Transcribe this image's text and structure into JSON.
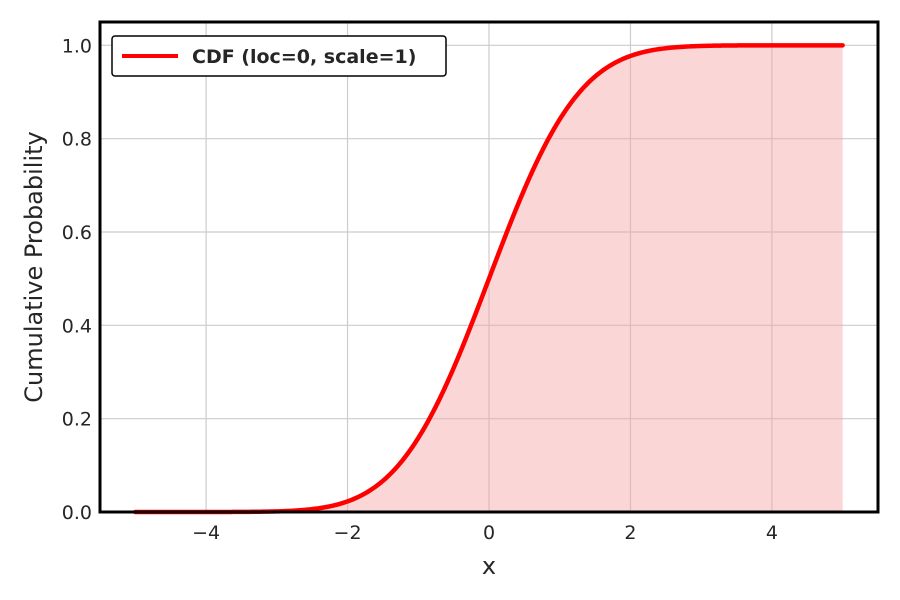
{
  "chart_data": {
    "type": "area",
    "title": "",
    "xlabel": "x",
    "ylabel": "Cumulative Probability",
    "xlim": [
      -5.5,
      5.5
    ],
    "ylim": [
      0.0,
      1.05
    ],
    "x_ticks": [
      -4,
      -2,
      0,
      2,
      4
    ],
    "x_tick_labels": [
      "−4",
      "−2",
      "0",
      "2",
      "4"
    ],
    "y_ticks": [
      0.0,
      0.2,
      0.4,
      0.6,
      0.8,
      1.0
    ],
    "y_tick_labels": [
      "0.0",
      "0.2",
      "0.4",
      "0.6",
      "0.8",
      "1.0"
    ],
    "grid": true,
    "legend_position": "top-left",
    "series": [
      {
        "name": "CDF (loc=0, scale=1)",
        "color": "#ff0000",
        "fill_color": "#f4a3a3",
        "x": [
          -5.0,
          -4.5,
          -4.0,
          -3.5,
          -3.0,
          -2.5,
          -2.0,
          -1.5,
          -1.25,
          -1.0,
          -0.75,
          -0.5,
          -0.25,
          0.0,
          0.25,
          0.5,
          0.75,
          1.0,
          1.25,
          1.5,
          2.0,
          2.5,
          3.0,
          3.5,
          4.0,
          4.5,
          5.0
        ],
        "y": [
          0.0,
          0.0,
          0.0,
          0.0002,
          0.0013,
          0.0062,
          0.0228,
          0.0668,
          0.1056,
          0.1587,
          0.2266,
          0.3085,
          0.4013,
          0.5,
          0.5987,
          0.6915,
          0.7734,
          0.8413,
          0.8944,
          0.9332,
          0.9772,
          0.9938,
          0.9987,
          0.9998,
          1.0,
          1.0,
          1.0
        ]
      }
    ]
  }
}
